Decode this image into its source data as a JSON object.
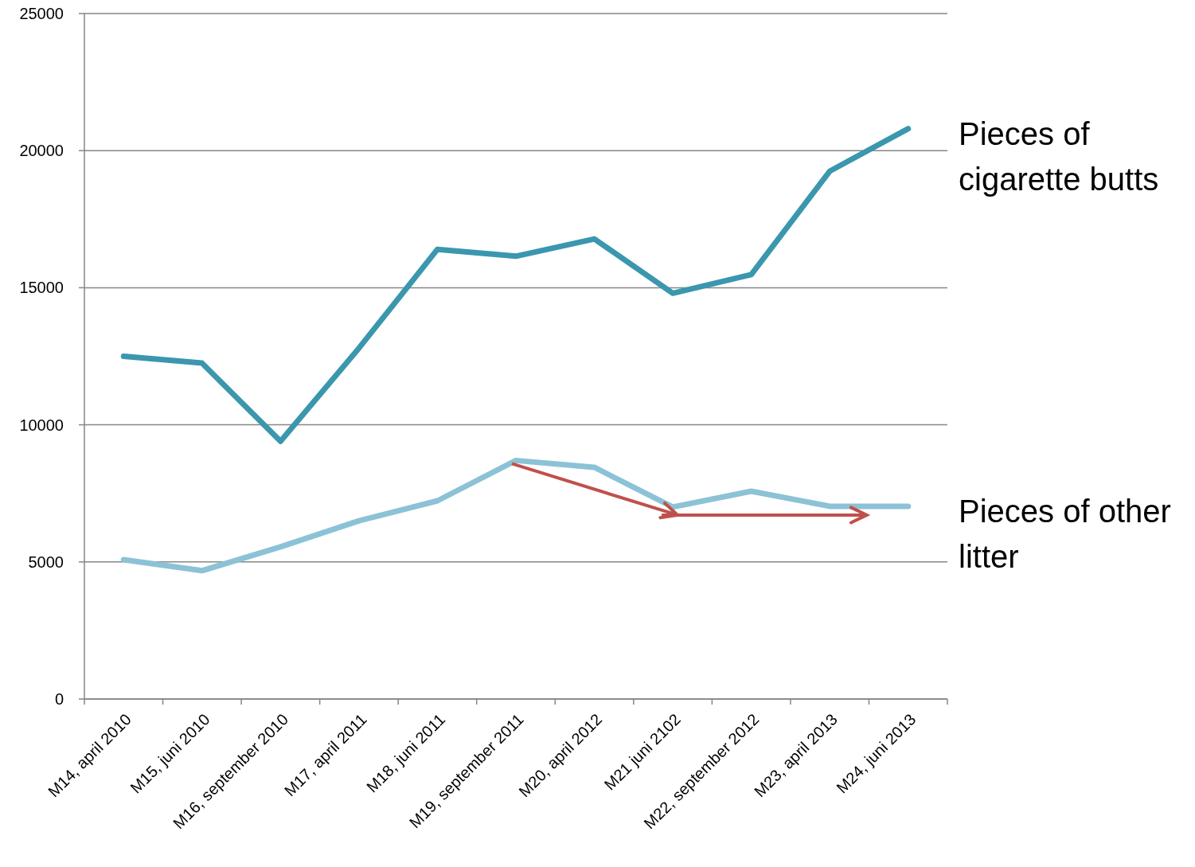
{
  "chart_data": {
    "type": "line",
    "categories": [
      "M14, april 2010",
      "M15, juni 2010",
      "M16, september 2010",
      "M17, april 2011",
      "M18, juni 2011",
      "M19, september 2011",
      "M20, april 2012",
      "M21 juni 2102",
      "M22, september 2012",
      "M23, april 2013",
      "M24, juni 2013"
    ],
    "series": [
      {
        "name": "Pieces of cigarette butts",
        "color": "#3a97ae",
        "values": [
          12500,
          12250,
          9400,
          12800,
          16400,
          16150,
          16780,
          14800,
          15480,
          19250,
          20800
        ]
      },
      {
        "name": "Pieces of other litter",
        "color": "#8cc2d6",
        "values": [
          5080,
          4680,
          5550,
          6500,
          7230,
          8700,
          8450,
          7000,
          7580,
          7030,
          7030
        ]
      }
    ],
    "ylim": [
      0,
      25000
    ],
    "yticks": [
      0,
      5000,
      10000,
      15000,
      20000,
      25000
    ],
    "grid": "y",
    "marker": "none",
    "line_style": "solid"
  }
}
